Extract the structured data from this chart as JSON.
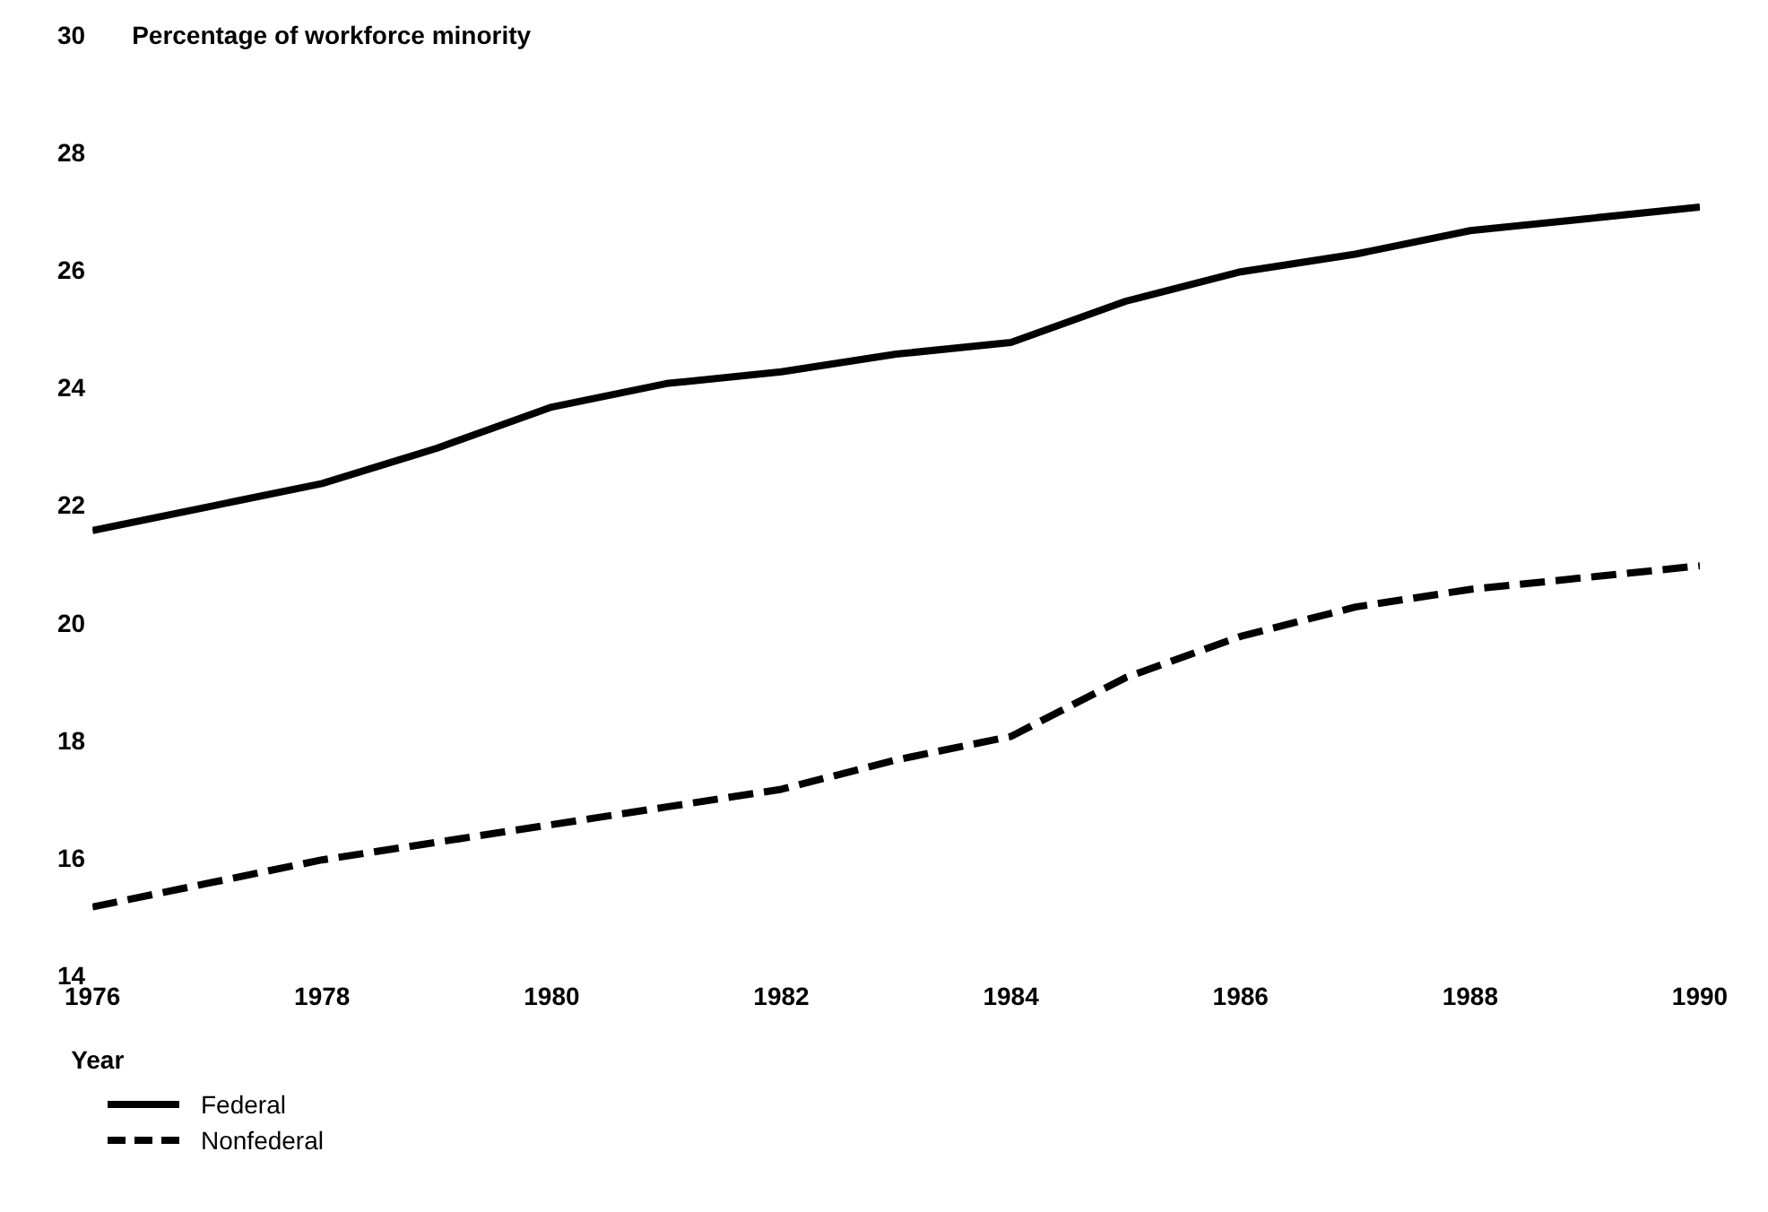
{
  "chart_data": {
    "type": "line",
    "ylabel": "Percentage of workforce minority",
    "xlabel": "Year",
    "x": [
      1976,
      1977,
      1978,
      1979,
      1980,
      1981,
      1982,
      1983,
      1984,
      1985,
      1986,
      1987,
      1988,
      1989,
      1990
    ],
    "series": [
      {
        "name": "Federal",
        "color": "#000000",
        "line_style": "solid",
        "values": [
          21.6,
          22.0,
          22.4,
          23.0,
          23.7,
          24.1,
          24.3,
          24.6,
          24.8,
          25.5,
          26.0,
          26.3,
          26.7,
          26.9,
          27.1
        ]
      },
      {
        "name": "Nonfederal",
        "color": "#000000",
        "line_style": "dashed",
        "values": [
          15.2,
          15.6,
          16.0,
          16.3,
          16.6,
          16.9,
          17.2,
          17.7,
          18.1,
          19.1,
          19.8,
          20.3,
          20.6,
          20.8,
          21.0
        ]
      }
    ],
    "xlim": [
      1976,
      1990
    ],
    "xticks": [
      1976,
      1978,
      1980,
      1982,
      1984,
      1986,
      1988,
      1990
    ],
    "ylim": [
      14,
      30
    ],
    "yticks": [
      14,
      16,
      18,
      20,
      22,
      24,
      26,
      28,
      30
    ],
    "grid": false,
    "legend": "bottom left",
    "marker": "none"
  }
}
